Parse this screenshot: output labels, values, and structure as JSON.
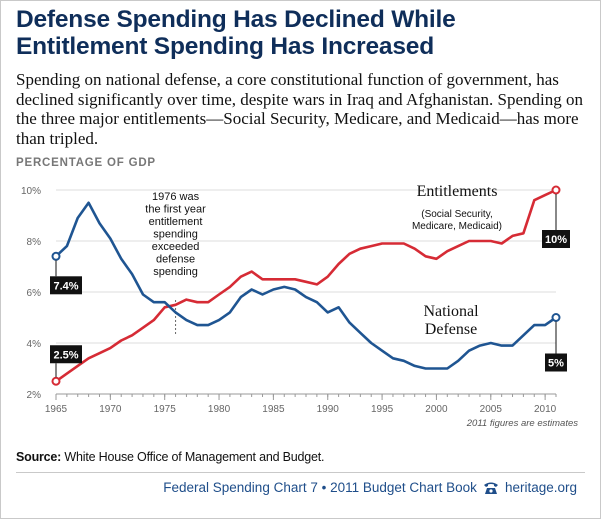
{
  "header": {
    "title_line1": "Defense Spending Has Declined While",
    "title_line2": "Entitlement Spending Has Increased",
    "subtitle": "Spending on national defense, a core constitutional function of government, has declined significantly over time, despite wars in Iraq and Afghanistan. Spending on the three major entitlements—Social Security, Medicare, and Medicaid—has more than tripled."
  },
  "chart_data": {
    "type": "line",
    "ylabel": "PERCENTAGE OF GDP",
    "x_ticks": [
      1965,
      1970,
      1975,
      1980,
      1985,
      1990,
      1995,
      2000,
      2005,
      2010
    ],
    "y_ticks": [
      "2%",
      "4%",
      "6%",
      "8%",
      "10%"
    ],
    "y_tick_values": [
      2,
      4,
      6,
      8,
      10
    ],
    "xlim": [
      1965,
      2011
    ],
    "ylim": [
      2,
      10
    ],
    "grid": true,
    "x": [
      1965,
      1966,
      1967,
      1968,
      1969,
      1970,
      1971,
      1972,
      1973,
      1974,
      1975,
      1976,
      1977,
      1978,
      1979,
      1980,
      1981,
      1982,
      1983,
      1984,
      1985,
      1986,
      1987,
      1988,
      1989,
      1990,
      1991,
      1992,
      1993,
      1994,
      1995,
      1996,
      1997,
      1998,
      1999,
      2000,
      2001,
      2002,
      2003,
      2004,
      2005,
      2006,
      2007,
      2008,
      2009,
      2010,
      2011
    ],
    "series": [
      {
        "name": "Entitlements",
        "sublabel": "(Social Security, Medicare, Medicaid)",
        "color": "#d62b35",
        "values": [
          2.5,
          2.8,
          3.1,
          3.4,
          3.6,
          3.8,
          4.1,
          4.3,
          4.6,
          4.9,
          5.4,
          5.5,
          5.7,
          5.6,
          5.6,
          5.9,
          6.2,
          6.6,
          6.8,
          6.5,
          6.5,
          6.5,
          6.5,
          6.4,
          6.3,
          6.6,
          7.1,
          7.5,
          7.7,
          7.8,
          7.9,
          7.9,
          7.9,
          7.7,
          7.4,
          7.3,
          7.6,
          7.8,
          8.0,
          8.0,
          8.0,
          7.9,
          8.2,
          8.3,
          9.6,
          9.8,
          10.0
        ],
        "start_label": "2.5%",
        "end_label": "10%"
      },
      {
        "name": "National Defense",
        "color": "#1f5592",
        "values": [
          7.4,
          7.8,
          8.9,
          9.5,
          8.7,
          8.1,
          7.3,
          6.7,
          5.9,
          5.6,
          5.6,
          5.2,
          4.9,
          4.7,
          4.7,
          4.9,
          5.2,
          5.8,
          6.1,
          5.9,
          6.1,
          6.2,
          6.1,
          5.8,
          5.6,
          5.2,
          5.4,
          4.8,
          4.4,
          4.0,
          3.7,
          3.4,
          3.3,
          3.1,
          3.0,
          3.0,
          3.0,
          3.3,
          3.7,
          3.9,
          4.0,
          3.9,
          3.9,
          4.3,
          4.7,
          4.7,
          5.0
        ],
        "start_label": "7.4%",
        "end_label": "5%"
      }
    ],
    "annotation": "1976 was the first year entitlement spending exceeded defense spending",
    "annotation_year": 1976,
    "note": "2011 figures are estimates"
  },
  "source": {
    "label": "Source:",
    "text": "White House Office of Management and Budget."
  },
  "footer": {
    "left": "Federal Spending Chart 7 • 2011 Budget Chart Book",
    "right": "heritage.org",
    "icon": "telephone-icon"
  }
}
